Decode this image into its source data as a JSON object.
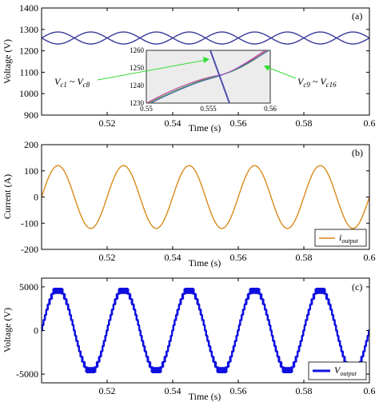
{
  "chart_data": [
    {
      "type": "line",
      "panel_label": "(a)",
      "xlabel": "Time (s)",
      "ylabel": "Voltage (V)",
      "xlim": [
        0.5,
        0.6
      ],
      "ylim": [
        900,
        1400
      ],
      "x_ticks": [
        "0.52",
        "0.54",
        "0.56",
        "0.58",
        "0.6"
      ],
      "y_ticks": [
        "900",
        "1000",
        "1100",
        "1200",
        "1300",
        "1400"
      ],
      "grid": false,
      "series": [
        {
          "name": "Vc1 ~ Vc8",
          "color": "#3a3a9a",
          "kind": "sine",
          "offset": 1260,
          "amplitude": 28,
          "period": 0.02,
          "phase": 0.0
        },
        {
          "name": "Vc9 ~ Vc16",
          "color": "#3a3a9a",
          "kind": "sine",
          "offset": 1260,
          "amplitude": 28,
          "period": 0.02,
          "phase": 3.1416
        }
      ],
      "annotations": [
        {
          "text_main": "V",
          "sub1": "c1",
          "mid": " ~ V",
          "sub2": "c8"
        },
        {
          "text_main": "V",
          "sub1": "c9",
          "mid": " ~ V",
          "sub2": "c16"
        }
      ],
      "inset": {
        "xlim": [
          0.55,
          0.56
        ],
        "ylim": [
          1230,
          1260
        ],
        "x_ticks": [
          "0.55",
          "0.555",
          "0.56"
        ],
        "y_ticks": [
          "1230",
          "1240",
          "1250",
          "1260"
        ],
        "background": "#ececec"
      }
    },
    {
      "type": "line",
      "panel_label": "(b)",
      "xlabel": "Time (s)",
      "ylabel": "Current (A)",
      "xlim": [
        0.5,
        0.6
      ],
      "ylim": [
        -200,
        200
      ],
      "x_ticks": [
        "0.52",
        "0.54",
        "0.56",
        "0.58",
        "0.6"
      ],
      "y_ticks": [
        "-200",
        "-100",
        "0",
        "100",
        "200"
      ],
      "grid": false,
      "legend": "bottom-right",
      "series": [
        {
          "name_main": "i",
          "name_sub": "output",
          "color": "#d98a1a",
          "kind": "sine",
          "amplitude": 120,
          "period": 0.02,
          "phase": 0.0
        }
      ]
    },
    {
      "type": "line",
      "panel_label": "(c)",
      "xlabel": "Time (s)",
      "ylabel": "Voltage (V)",
      "xlim": [
        0.5,
        0.6
      ],
      "ylim": [
        -6000,
        6000
      ],
      "x_ticks": [
        "0.52",
        "0.54",
        "0.56",
        "0.58",
        "0.6"
      ],
      "y_ticks": [
        "-5000",
        "0",
        "5000"
      ],
      "grid": false,
      "legend": "bottom-right",
      "series": [
        {
          "name_main": "V",
          "name_sub": "output",
          "color": "#1010e0",
          "kind": "staircase",
          "amplitude": 4800,
          "levels": 8,
          "period": 0.02,
          "phase": 0.0
        }
      ]
    }
  ]
}
